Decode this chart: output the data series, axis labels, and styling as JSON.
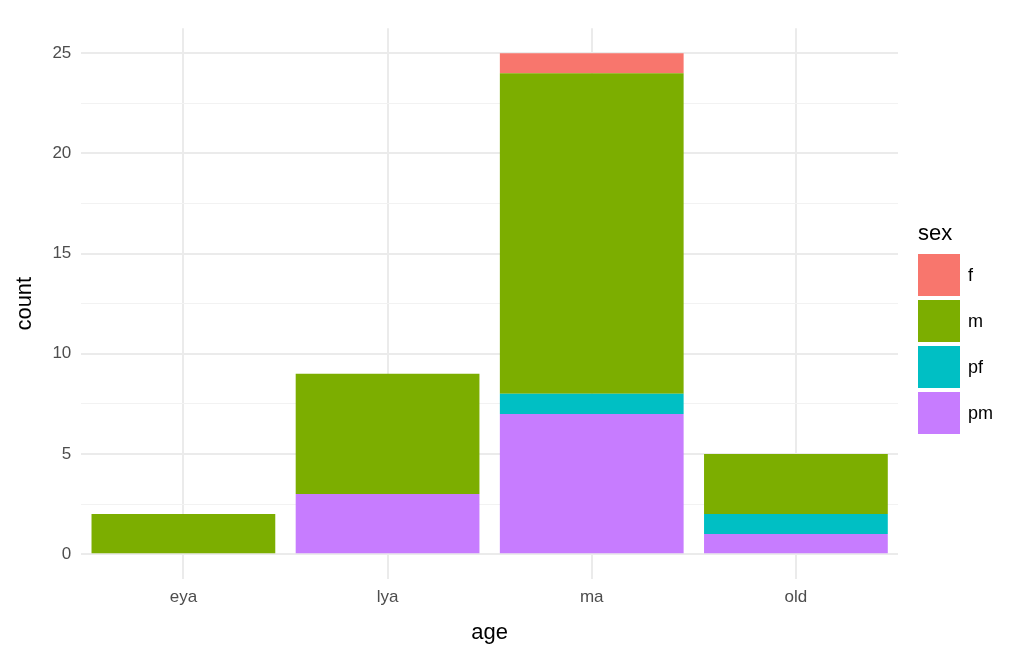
{
  "chart_data": {
    "type": "bar",
    "xlabel": "age",
    "ylabel": "count",
    "legend_title": "sex",
    "categories": [
      "eya",
      "lya",
      "ma",
      "old"
    ],
    "series": [
      {
        "name": "pm",
        "color": "#c77cff",
        "values": [
          0,
          3,
          7,
          1
        ]
      },
      {
        "name": "pf",
        "color": "#00bfc4",
        "values": [
          0,
          0,
          1,
          1
        ]
      },
      {
        "name": "m",
        "color": "#7cae00",
        "values": [
          2,
          6,
          16,
          3
        ]
      },
      {
        "name": "f",
        "color": "#f8766d",
        "values": [
          0,
          0,
          1,
          0
        ]
      }
    ],
    "stacked": true,
    "ylim": [
      -1.25,
      26.25
    ],
    "yticks": [
      0,
      {
        "value": 2.5,
        "label": null
      },
      5,
      {
        "value": 7.5,
        "label": null
      },
      10,
      {
        "value": 12.5,
        "label": null
      },
      15,
      {
        "value": 17.5,
        "label": null
      },
      20,
      {
        "value": 22.5,
        "label": null
      },
      25
    ],
    "grid": true,
    "legend": "right"
  }
}
